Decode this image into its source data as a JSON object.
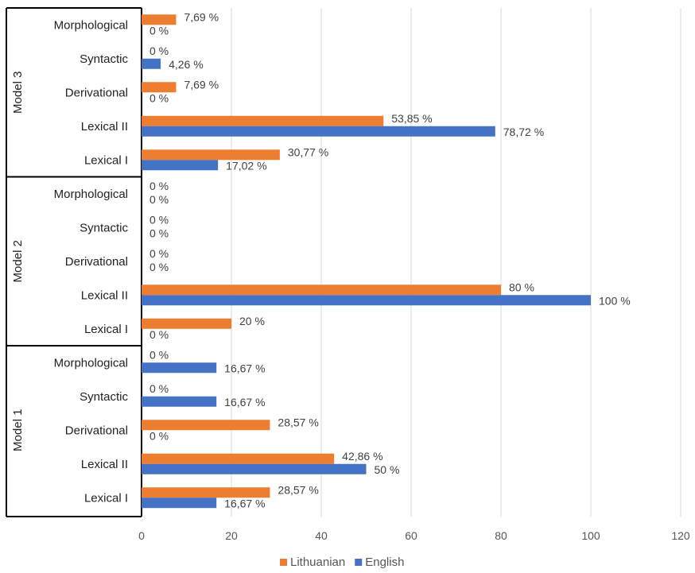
{
  "chart_data": {
    "type": "bar",
    "orientation": "horizontal",
    "groups": [
      "Model 3",
      "Model 2",
      "Model 1"
    ],
    "categories": [
      "Morphological",
      "Syntactic",
      "Derivational",
      "Lexical II",
      "Lexical I"
    ],
    "series": [
      {
        "name": "Lithuanian",
        "color": "#ED7D31",
        "values": [
          [
            7.69,
            0,
            7.69,
            53.85,
            30.77
          ],
          [
            0,
            0,
            0,
            80,
            20
          ],
          [
            0,
            0,
            28.57,
            42.86,
            28.57
          ]
        ],
        "labels": [
          [
            "7,69 %",
            "0 %",
            "7,69 %",
            "53,85 %",
            "30,77 %"
          ],
          [
            "0 %",
            "0 %",
            "0 %",
            "80 %",
            "20 %"
          ],
          [
            "0 %",
            "0 %",
            "28,57 %",
            "42,86 %",
            "28,57 %"
          ]
        ]
      },
      {
        "name": "English",
        "color": "#4472C4",
        "values": [
          [
            0,
            4.26,
            0,
            78.72,
            17.02
          ],
          [
            0,
            0,
            0,
            100,
            0
          ],
          [
            16.67,
            16.67,
            0,
            50,
            16.67
          ]
        ],
        "labels": [
          [
            "0 %",
            "4,26 %",
            "0 %",
            "78,72 %",
            "17,02 %"
          ],
          [
            "0 %",
            "0 %",
            "0 %",
            "100 %",
            "0 %"
          ],
          [
            "16,67 %",
            "16,67 %",
            "0 %",
            "50 %",
            "16,67 %"
          ]
        ]
      }
    ],
    "xlim": [
      0,
      120
    ],
    "xticks": [
      0,
      20,
      40,
      60,
      80,
      100,
      120
    ],
    "xtick_labels": [
      "0",
      "20",
      "40",
      "60",
      "80",
      "100",
      "120"
    ],
    "grid": "vertical",
    "legend": "bottom",
    "gridline_color": "#D9D9D9",
    "title": "",
    "xlabel": "",
    "ylabel": ""
  }
}
